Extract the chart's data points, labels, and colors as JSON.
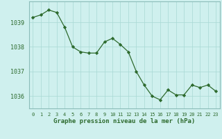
{
  "x": [
    0,
    1,
    2,
    3,
    4,
    5,
    6,
    7,
    8,
    9,
    10,
    11,
    12,
    13,
    14,
    15,
    16,
    17,
    18,
    19,
    20,
    21,
    22,
    23
  ],
  "y": [
    1039.2,
    1039.3,
    1039.5,
    1039.4,
    1038.8,
    1038.0,
    1037.8,
    1037.75,
    1037.75,
    1038.2,
    1038.35,
    1038.1,
    1037.8,
    1037.0,
    1036.45,
    1036.0,
    1035.85,
    1036.25,
    1036.05,
    1036.05,
    1036.45,
    1036.35,
    1036.45,
    1036.2
  ],
  "xlabel": "Graphe pression niveau de la mer (hPa)",
  "line_color": "#2d6a2d",
  "marker": "D",
  "marker_size": 2.2,
  "bg_color": "#cff0ee",
  "grid_color": "#a8d8d4",
  "grid_major_color": "#8bbcb8",
  "tick_label_color": "#2d6a2d",
  "xlabel_color": "#2d6a2d",
  "ylim": [
    1035.5,
    1039.85
  ],
  "yticks": [
    1036,
    1037,
    1038,
    1039
  ],
  "xtick_labels": [
    "0",
    "1",
    "2",
    "3",
    "4",
    "5",
    "6",
    "7",
    "8",
    "9",
    "10",
    "11",
    "12",
    "13",
    "14",
    "15",
    "16",
    "17",
    "18",
    "19",
    "20",
    "21",
    "22",
    "23"
  ]
}
